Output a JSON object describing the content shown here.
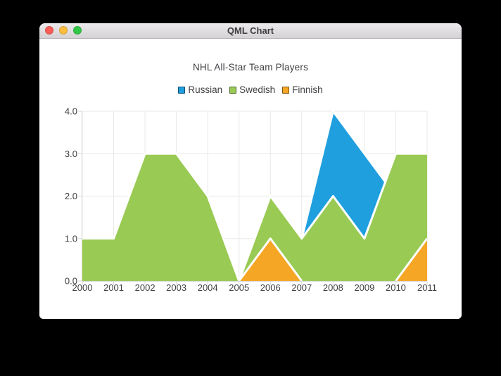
{
  "window": {
    "title": "QML Chart",
    "buttons": {
      "close": "#fc5d57",
      "minimize": "#fdbd3e",
      "zoom": "#33c748"
    }
  },
  "chart_data": {
    "type": "area",
    "title": "NHL All-Star Team Players",
    "x": [
      2000,
      2001,
      2002,
      2003,
      2004,
      2005,
      2006,
      2007,
      2008,
      2009,
      2010,
      2011
    ],
    "x_ticks": [
      "2000",
      "2001",
      "2002",
      "2003",
      "2004",
      "2005",
      "2006",
      "2007",
      "2008",
      "2009",
      "2010",
      "2011"
    ],
    "y_ticks": [
      "0.0",
      "1.0",
      "2.0",
      "3.0",
      "4.0"
    ],
    "xlim": [
      2000,
      2011
    ],
    "ylim": [
      0,
      4
    ],
    "grid": true,
    "legend_position": "top",
    "series": [
      {
        "name": "Russian",
        "color": "#209fdf",
        "values": [
          1,
          1,
          1,
          1,
          1,
          0,
          1,
          1,
          4,
          3,
          2,
          1
        ]
      },
      {
        "name": "Swedish",
        "color": "#99ca53",
        "values": [
          1,
          1,
          3,
          3,
          2,
          0,
          2,
          1,
          2,
          1,
          3,
          3
        ]
      },
      {
        "name": "Finnish",
        "color": "#f6a625",
        "values": [
          0,
          0,
          0,
          0,
          0,
          0,
          1,
          0,
          0,
          0,
          0,
          1
        ]
      }
    ],
    "area_border_color": "#ffffff",
    "area_border_width": 3,
    "grid_color": "#e8e8e8",
    "axis_color": "#d5d5d5",
    "label_color": "#404044"
  }
}
